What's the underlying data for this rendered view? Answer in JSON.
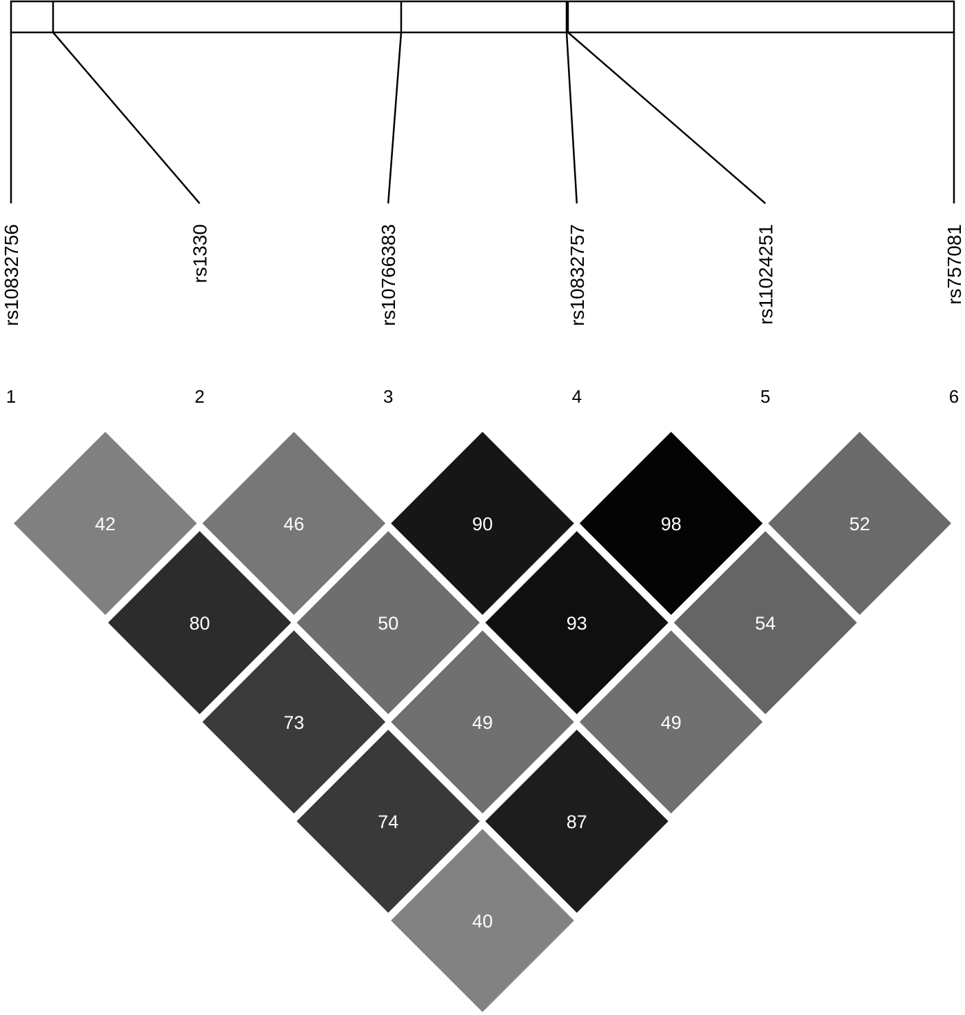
{
  "snps": [
    {
      "id": "rs10832756",
      "index": "1"
    },
    {
      "id": "rs1330",
      "index": "2"
    },
    {
      "id": "rs10766383",
      "index": "3"
    },
    {
      "id": "rs10832757",
      "index": "4"
    },
    {
      "id": "rs11024251",
      "index": "5"
    },
    {
      "id": "rs757081",
      "index": "6"
    }
  ],
  "ld_matrix": [
    {
      "i": 1,
      "j": 2,
      "value": "42"
    },
    {
      "i": 2,
      "j": 3,
      "value": "46"
    },
    {
      "i": 3,
      "j": 4,
      "value": "90"
    },
    {
      "i": 4,
      "j": 5,
      "value": "98"
    },
    {
      "i": 5,
      "j": 6,
      "value": "52"
    },
    {
      "i": 1,
      "j": 3,
      "value": "80"
    },
    {
      "i": 2,
      "j": 4,
      "value": "50"
    },
    {
      "i": 3,
      "j": 5,
      "value": "93"
    },
    {
      "i": 4,
      "j": 6,
      "value": "54"
    },
    {
      "i": 1,
      "j": 4,
      "value": "73"
    },
    {
      "i": 2,
      "j": 5,
      "value": "49"
    },
    {
      "i": 3,
      "j": 6,
      "value": "49"
    },
    {
      "i": 1,
      "j": 5,
      "value": "74"
    },
    {
      "i": 2,
      "j": 6,
      "value": "87"
    },
    {
      "i": 1,
      "j": 6,
      "value": "40"
    }
  ],
  "colors": {
    "cell_dark": "#000000",
    "cell_light": "#8c8c8c",
    "cell_text": "#ffffff",
    "line": "#000000",
    "background": "#ffffff"
  }
}
